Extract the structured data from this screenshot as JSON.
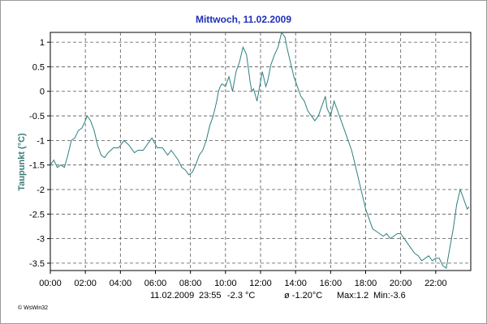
{
  "chart_data": {
    "type": "line",
    "title": "Mittwoch, 11.02.2009",
    "ylabel": "Taupunkt  (°C)",
    "xlabel": "",
    "xlim": [
      0,
      24
    ],
    "ylim": [
      -3.65,
      1.2
    ],
    "grid": true,
    "line_color": "#2f7f7f",
    "x_ticks": [
      "00:00",
      "02:00",
      "04:00",
      "06:00",
      "08:00",
      "10:00",
      "12:00",
      "14:00",
      "16:00",
      "18:00",
      "20:00",
      "22:00"
    ],
    "y_ticks": [
      1,
      0.5,
      0,
      -0.5,
      -1,
      -1.5,
      -2,
      -2.5,
      -3,
      -3.5
    ],
    "y_tick_labels": [
      "1",
      "0.5",
      "0",
      "-0.5",
      "-1",
      "-1.5",
      "-2",
      "-2.5",
      "-3",
      "-3.5"
    ],
    "series": [
      {
        "x": [
          0,
          0.2,
          0.4,
          0.6,
          0.8,
          1.0,
          1.2,
          1.4,
          1.6,
          1.8,
          2.0,
          2.1,
          2.3,
          2.5,
          2.7,
          2.9,
          3.1,
          3.3,
          3.6,
          3.9,
          4.2,
          4.5,
          4.8,
          5.0,
          5.3,
          5.5,
          5.8,
          6.1,
          6.4,
          6.7,
          6.9,
          7.1,
          7.3,
          7.5,
          7.7,
          7.9,
          8.1,
          8.3,
          8.5,
          8.7,
          8.9,
          9.1,
          9.3,
          9.5,
          9.6,
          9.7,
          9.8,
          10.0,
          10.2,
          10.4,
          10.6,
          10.8,
          11.0,
          11.2,
          11.4,
          11.5,
          11.6,
          11.8,
          11.9,
          12.0,
          12.1,
          12.3,
          12.4,
          12.6,
          12.8,
          13.0,
          13.2,
          13.4,
          13.5,
          13.7,
          13.9,
          14.1,
          14.3,
          14.5,
          14.7,
          14.9,
          15.1,
          15.3,
          15.5,
          15.7,
          15.8,
          16.0,
          16.2,
          16.4,
          16.6,
          16.8,
          17.0,
          17.2,
          17.4,
          17.6,
          17.8,
          18.0,
          18.2,
          18.4,
          18.6,
          18.8,
          19.0,
          19.2,
          19.4,
          19.6,
          19.8,
          20.0,
          20.2,
          20.4,
          20.6,
          20.8,
          21.0,
          21.2,
          21.4,
          21.6,
          21.8,
          22.0,
          22.2,
          22.4,
          22.6,
          22.8,
          23.0,
          23.2,
          23.4,
          23.6,
          23.8,
          23.9
        ],
        "y": [
          -1.5,
          -1.4,
          -1.55,
          -1.5,
          -1.55,
          -1.3,
          -1.0,
          -0.95,
          -0.8,
          -0.75,
          -0.6,
          -0.5,
          -0.6,
          -0.8,
          -1.1,
          -1.3,
          -1.35,
          -1.25,
          -1.15,
          -1.15,
          -1.0,
          -1.1,
          -1.25,
          -1.2,
          -1.2,
          -1.1,
          -0.95,
          -1.15,
          -1.15,
          -1.3,
          -1.2,
          -1.3,
          -1.4,
          -1.55,
          -1.6,
          -1.7,
          -1.65,
          -1.5,
          -1.3,
          -1.2,
          -1.0,
          -0.7,
          -0.5,
          -0.2,
          0.0,
          0.1,
          0.15,
          0.1,
          0.3,
          0.0,
          0.4,
          0.6,
          0.9,
          0.75,
          0.2,
          0.0,
          0.05,
          -0.2,
          0.0,
          0.2,
          0.4,
          0.1,
          0.2,
          0.55,
          0.75,
          0.9,
          1.2,
          1.1,
          0.9,
          0.6,
          0.3,
          0.1,
          -0.1,
          -0.2,
          -0.4,
          -0.5,
          -0.6,
          -0.5,
          -0.3,
          -0.1,
          -0.35,
          -0.5,
          -0.2,
          -0.4,
          -0.6,
          -0.8,
          -1.0,
          -1.2,
          -1.5,
          -1.8,
          -2.1,
          -2.4,
          -2.6,
          -2.8,
          -2.85,
          -2.9,
          -2.95,
          -2.9,
          -3.0,
          -2.95,
          -2.9,
          -2.9,
          -3.0,
          -3.1,
          -3.2,
          -3.3,
          -3.35,
          -3.45,
          -3.4,
          -3.35,
          -3.45,
          -3.4,
          -3.4,
          -3.55,
          -3.6,
          -3.2,
          -2.8,
          -2.3,
          -2.0,
          -2.2,
          -2.4,
          -2.35
        ]
      }
    ]
  },
  "footer": {
    "date": "11.02.2009",
    "time": "23:55",
    "current": "-2.3 °C",
    "avg": "ø -1.20°C",
    "max": "Max:1.2",
    "min": "Min:-3.6"
  },
  "credit": "© WsWin32"
}
